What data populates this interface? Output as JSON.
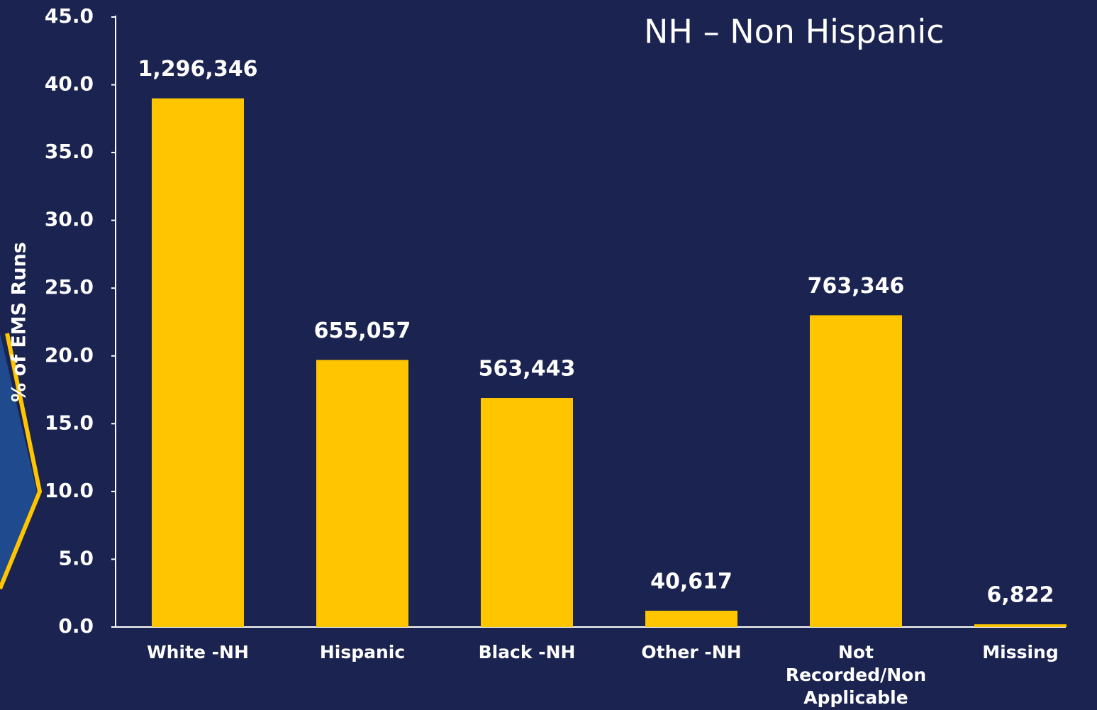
{
  "chart_data": {
    "type": "bar",
    "annotation": "NH – Non Hispanic",
    "y_label": "% of EMS Runs",
    "categories": [
      "White -NH",
      "Hispanic",
      "Black -NH",
      "Other -NH",
      "Not Recorded/Non Applicable",
      "Missing"
    ],
    "values": [
      39.0,
      19.7,
      16.9,
      1.2,
      23.0,
      0.2
    ],
    "count_labels": [
      "1,296,346",
      "655,057",
      "563,443",
      "40,617",
      "763,346",
      "6,822"
    ],
    "color": "#ffc600",
    "ylim": [
      0,
      45
    ],
    "yticks": [
      {
        "value": 0,
        "label": "0.0"
      },
      {
        "value": 5,
        "label": "5.0"
      },
      {
        "value": 10,
        "label": "10.0"
      },
      {
        "value": 15,
        "label": "15.0"
      },
      {
        "value": 20,
        "label": "20.0"
      },
      {
        "value": 25,
        "label": "25.0"
      },
      {
        "value": 30,
        "label": "30.0"
      },
      {
        "value": 35,
        "label": "35.0"
      },
      {
        "value": 40,
        "label": "40.0"
      },
      {
        "value": 45,
        "label": "45.0"
      }
    ],
    "grid": false
  }
}
